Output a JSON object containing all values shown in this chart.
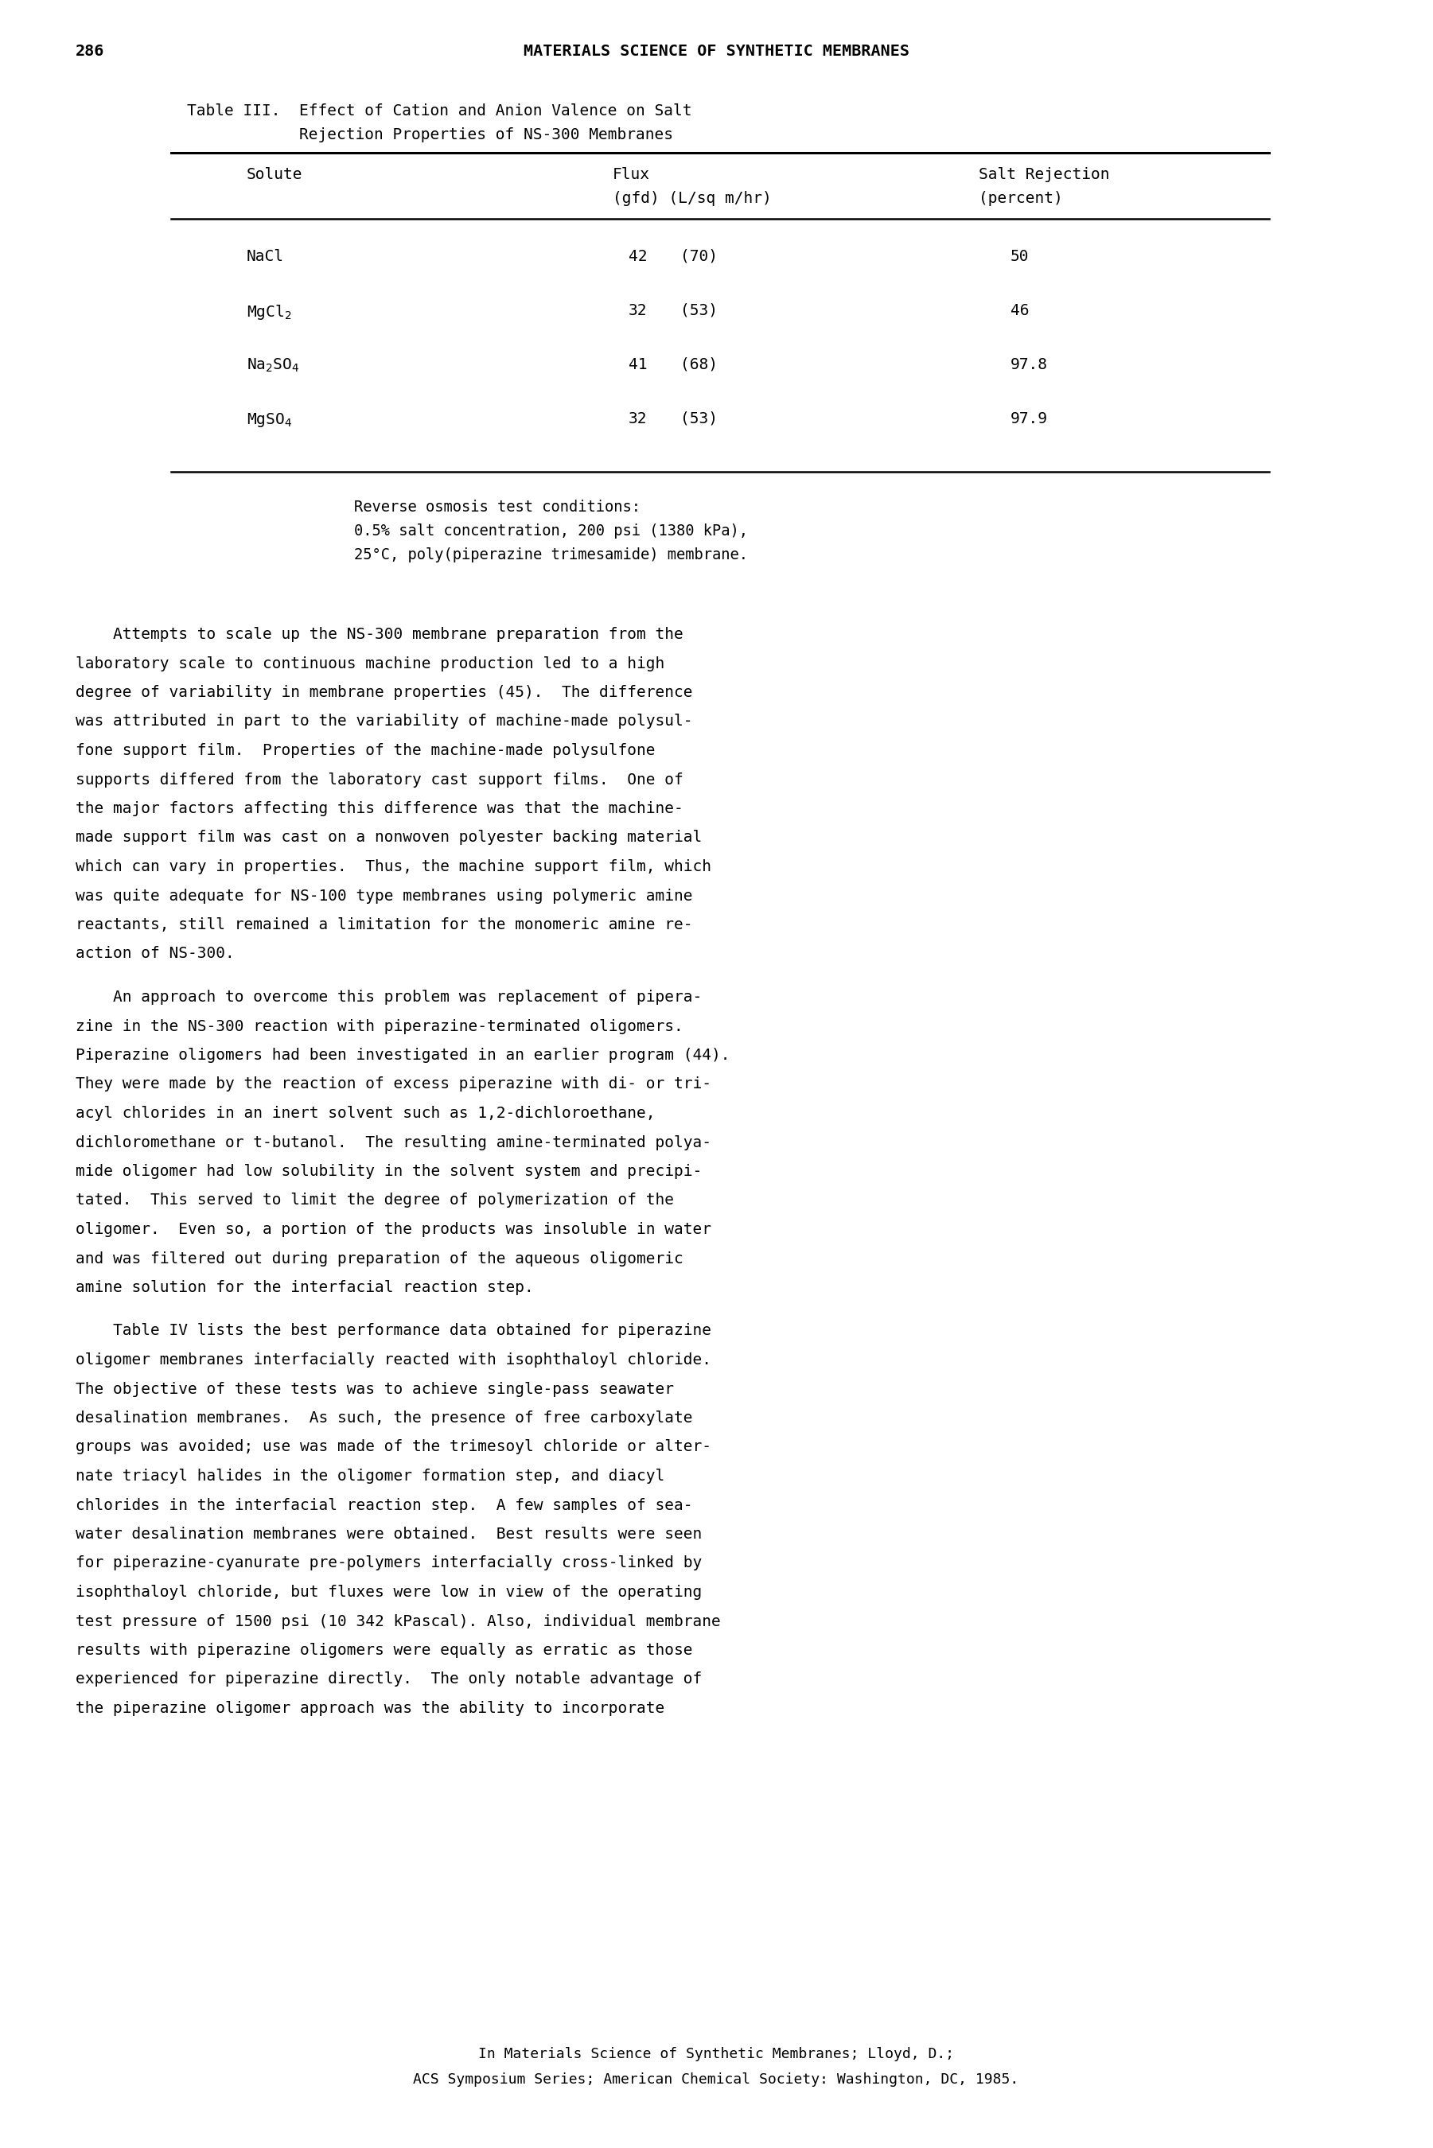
{
  "page_number": "286",
  "header": "MATERIALS SCIENCE OF SYNTHETIC MEMBRANES",
  "table_title_line1": "Table III.  Effect of Cation and Anion Valence on Salt",
  "table_title_line2": "            Rejection Properties of NS-300 Membranes",
  "table_note_lines": [
    "Reverse osmosis test conditions:",
    "0.5% salt concentration, 200 psi (1380 kPa),",
    "25°C, poly(piperazine trimesamide) membrane."
  ],
  "paragraph1": "    Attempts to scale up the NS-300 membrane preparation from the\nlaboratory scale to continuous machine production led to a high\ndegree of variability in membrane properties (45).  The difference\nwas attributed in part to the variability of machine-made polysul-\nfone support film.  Properties of the machine-made polysulfone\nsupports differed from the laboratory cast support films.  One of\nthe major factors affecting this difference was that the machine-\nmade support film was cast on a nonwoven polyester backing material\nwhich can vary in properties.  Thus, the machine support film, which\nwas quite adequate for NS-100 type membranes using polymeric amine\nreactants, still remained a limitation for the monomeric amine re-\naction of NS-300.",
  "paragraph2": "    An approach to overcome this problem was replacement of pipera-\nzine in the NS-300 reaction with piperazine-terminated oligomers.\nPiperazine oligomers had been investigated in an earlier program (44).\nThey were made by the reaction of excess piperazine with di- or tri-\nacyl chlorides in an inert solvent such as 1,2-dichloroethane,\ndichloromethane or t-butanol.  The resulting amine-terminated polya-\nmide oligomer had low solubility in the solvent system and precipi-\ntated.  This served to limit the degree of polymerization of the\noligomer.  Even so, a portion of the products was insoluble in water\nand was filtered out during preparation of the aqueous oligomeric\namine solution for the interfacial reaction step.",
  "paragraph3": "    Table IV lists the best performance data obtained for piperazine\noligomer membranes interfacially reacted with isophthaloyl chloride.\nThe objective of these tests was to achieve single-pass seawater\ndesalination membranes.  As such, the presence of free carboxylate\ngroups was avoided; use was made of the trimesoyl chloride or alter-\nnate triacyl halides in the oligomer formation step, and diacyl\nchlorides in the interfacial reaction step.  A few samples of sea-\nwater desalination membranes were obtained.  Best results were seen\nfor piperazine-cyanurate pre-polymers interfacially cross-linked by\nisophthaloyl chloride, but fluxes were low in view of the operating\ntest pressure of 1500 psi (10 342 kPascal). Also, individual membrane\nresults with piperazine oligomers were equally as erratic as those\nexperienced for piperazine directly.  The only notable advantage of\nthe piperazine oligomer approach was the ability to incorporate",
  "footer_line1": "In Materials Science of Synthetic Membranes; Lloyd, D.;",
  "footer_line2": "ACS Symposium Series; American Chemical Society: Washington, DC, 1985.",
  "bg_color": "#ffffff",
  "text_color": "#000000"
}
